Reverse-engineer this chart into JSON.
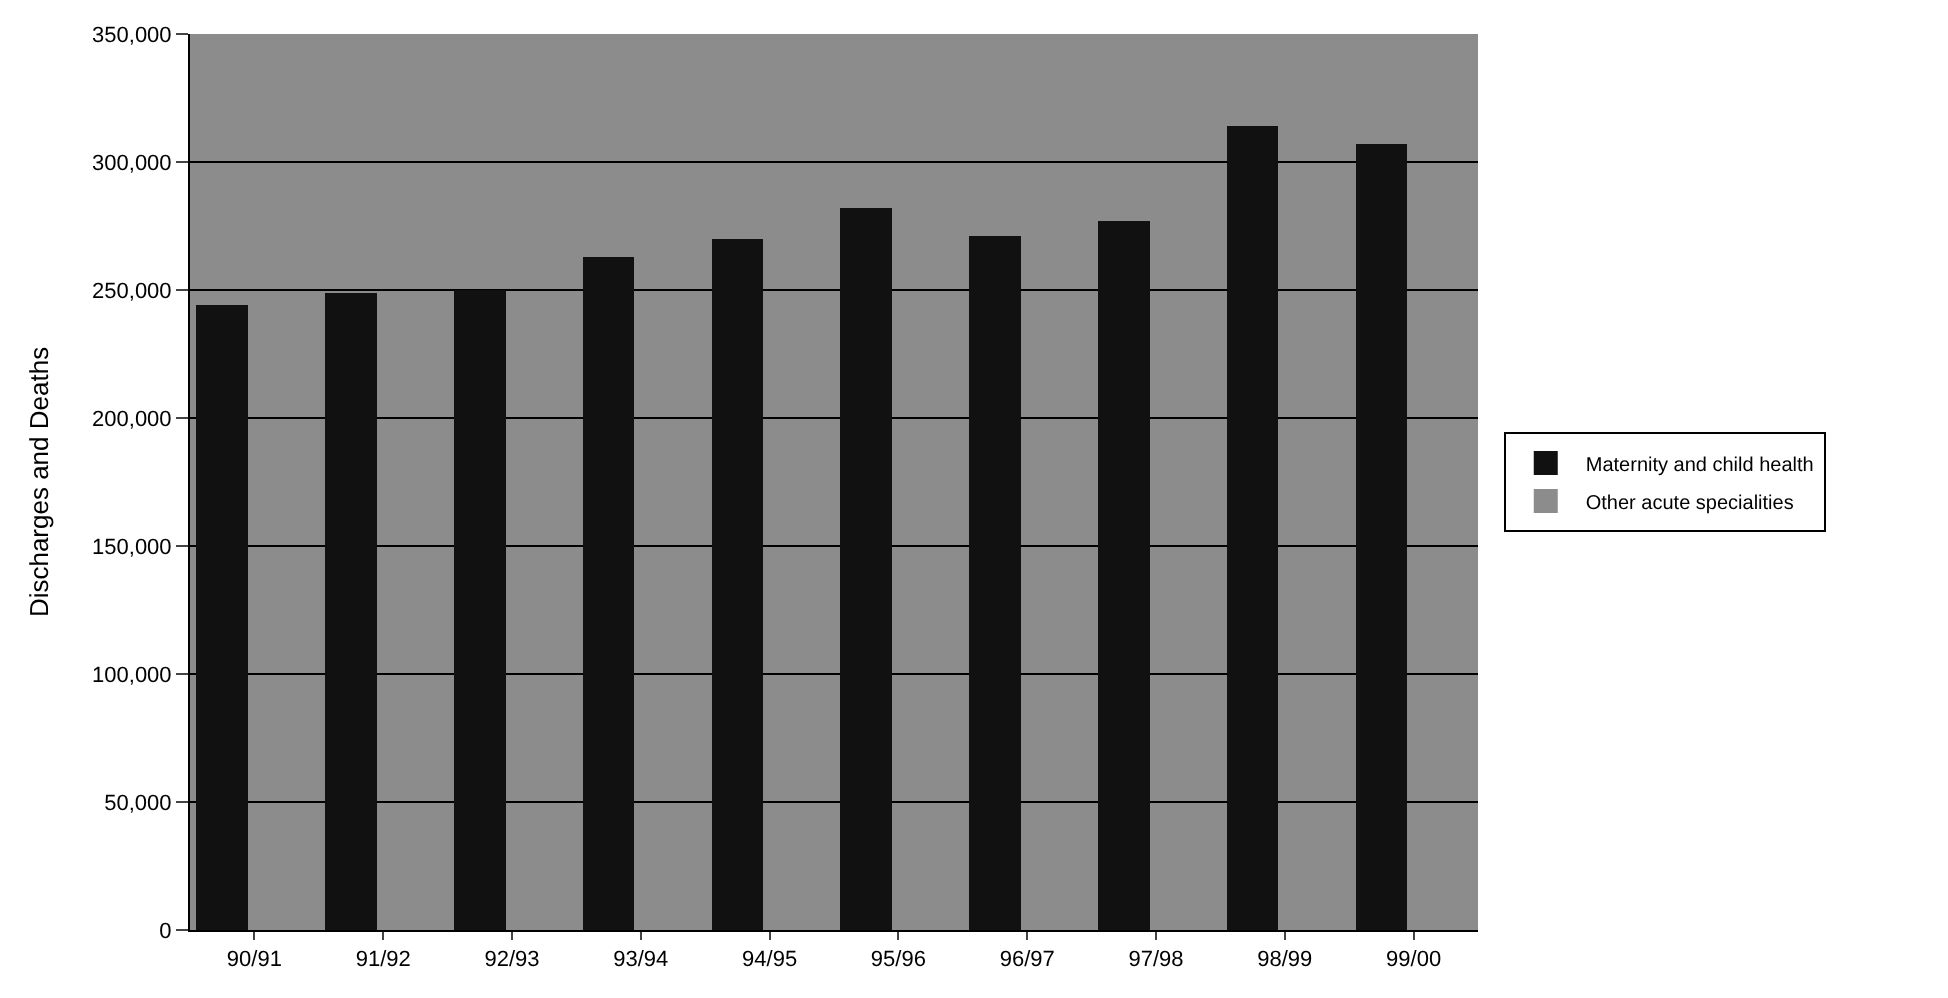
{
  "chart_data": {
    "type": "bar",
    "stacked": true,
    "ylabel": "Discharges and Deaths",
    "categories": [
      "90/91",
      "91/92",
      "92/93",
      "93/94",
      "94/95",
      "95/96",
      "96/97",
      "97/98",
      "98/99",
      "99/00"
    ],
    "series": [
      {
        "name": "Maternity and child health",
        "color": "#111111",
        "values": [
          244000,
          249000,
          250000,
          263000,
          270000,
          282000,
          271000,
          277000,
          314000,
          307000
        ]
      },
      {
        "name": "Other acute specialities",
        "color": "#8c8c8c",
        "values": [
          null,
          null,
          null,
          null,
          null,
          null,
          null,
          null,
          null,
          null
        ]
      }
    ],
    "ylim": [
      0,
      350000
    ],
    "yticks": [
      {
        "value": 0,
        "label": "0"
      },
      {
        "value": 50000,
        "label": "50,000"
      },
      {
        "value": 100000,
        "label": "100,000"
      },
      {
        "value": 150000,
        "label": "150,000"
      },
      {
        "value": 200000,
        "label": "200,000"
      },
      {
        "value": 250000,
        "label": "250,000"
      },
      {
        "value": 300000,
        "label": "300,000"
      },
      {
        "value": 350000,
        "label": "350,000"
      }
    ],
    "grid": "y",
    "legend": "right"
  }
}
